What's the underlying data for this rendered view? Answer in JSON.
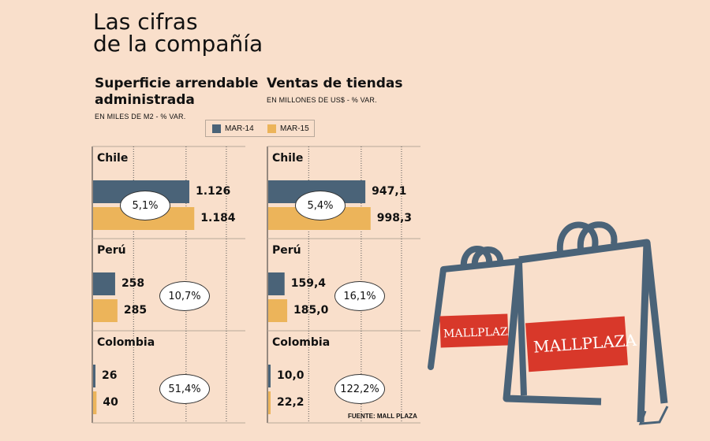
{
  "page": {
    "title_line1": "Las cifras",
    "title_line2": "de la compañía"
  },
  "legend": {
    "items": [
      {
        "label": "MAR-14",
        "color": "#4a6378"
      },
      {
        "label": "MAR-15",
        "color": "#ecb45a"
      }
    ]
  },
  "source": "FUENTE: MALL PLAZA",
  "colors": {
    "mar14": "#4a6378",
    "mar15": "#ecb45a",
    "background": "#f9dfcb",
    "brand_red": "#d8382a",
    "bag_outline": "#4a6378"
  },
  "illustration": {
    "icon": "shopping-bags-icon",
    "bag_brand": "MALLPLAZA"
  },
  "chart_data": [
    {
      "type": "bar",
      "orientation": "horizontal",
      "title_line1": "Superficie arrendable",
      "title_line2": "administrada",
      "subtitle": "EN MILES DE M2 - % VAR.",
      "categories": [
        "Chile",
        "Perú",
        "Colombia"
      ],
      "series": [
        {
          "name": "MAR-14",
          "values": [
            1126,
            258,
            26
          ],
          "labels": [
            "1.126",
            "258",
            "26"
          ]
        },
        {
          "name": "MAR-15",
          "values": [
            1184,
            285,
            40
          ],
          "labels": [
            "1.184",
            "285",
            "40"
          ]
        }
      ],
      "variation": [
        "5,1%",
        "10,7%",
        "51,4%"
      ],
      "xlim": [
        0,
        1800
      ]
    },
    {
      "type": "bar",
      "orientation": "horizontal",
      "title_line1": "Ventas de tiendas",
      "title_line2": "",
      "subtitle": "EN MILLONES DE US$ - % VAR.",
      "categories": [
        "Chile",
        "Perú",
        "Colombia"
      ],
      "series": [
        {
          "name": "MAR-14",
          "values": [
            947.1,
            159.4,
            10.0
          ],
          "labels": [
            "947,1",
            "159,4",
            "10,0"
          ]
        },
        {
          "name": "MAR-15",
          "values": [
            998.3,
            185.0,
            22.2
          ],
          "labels": [
            "998,3",
            "185,0",
            "22,2"
          ]
        }
      ],
      "variation": [
        "5,4%",
        "16,1%",
        "122,2%"
      ],
      "xlim": [
        0,
        1500
      ]
    }
  ]
}
